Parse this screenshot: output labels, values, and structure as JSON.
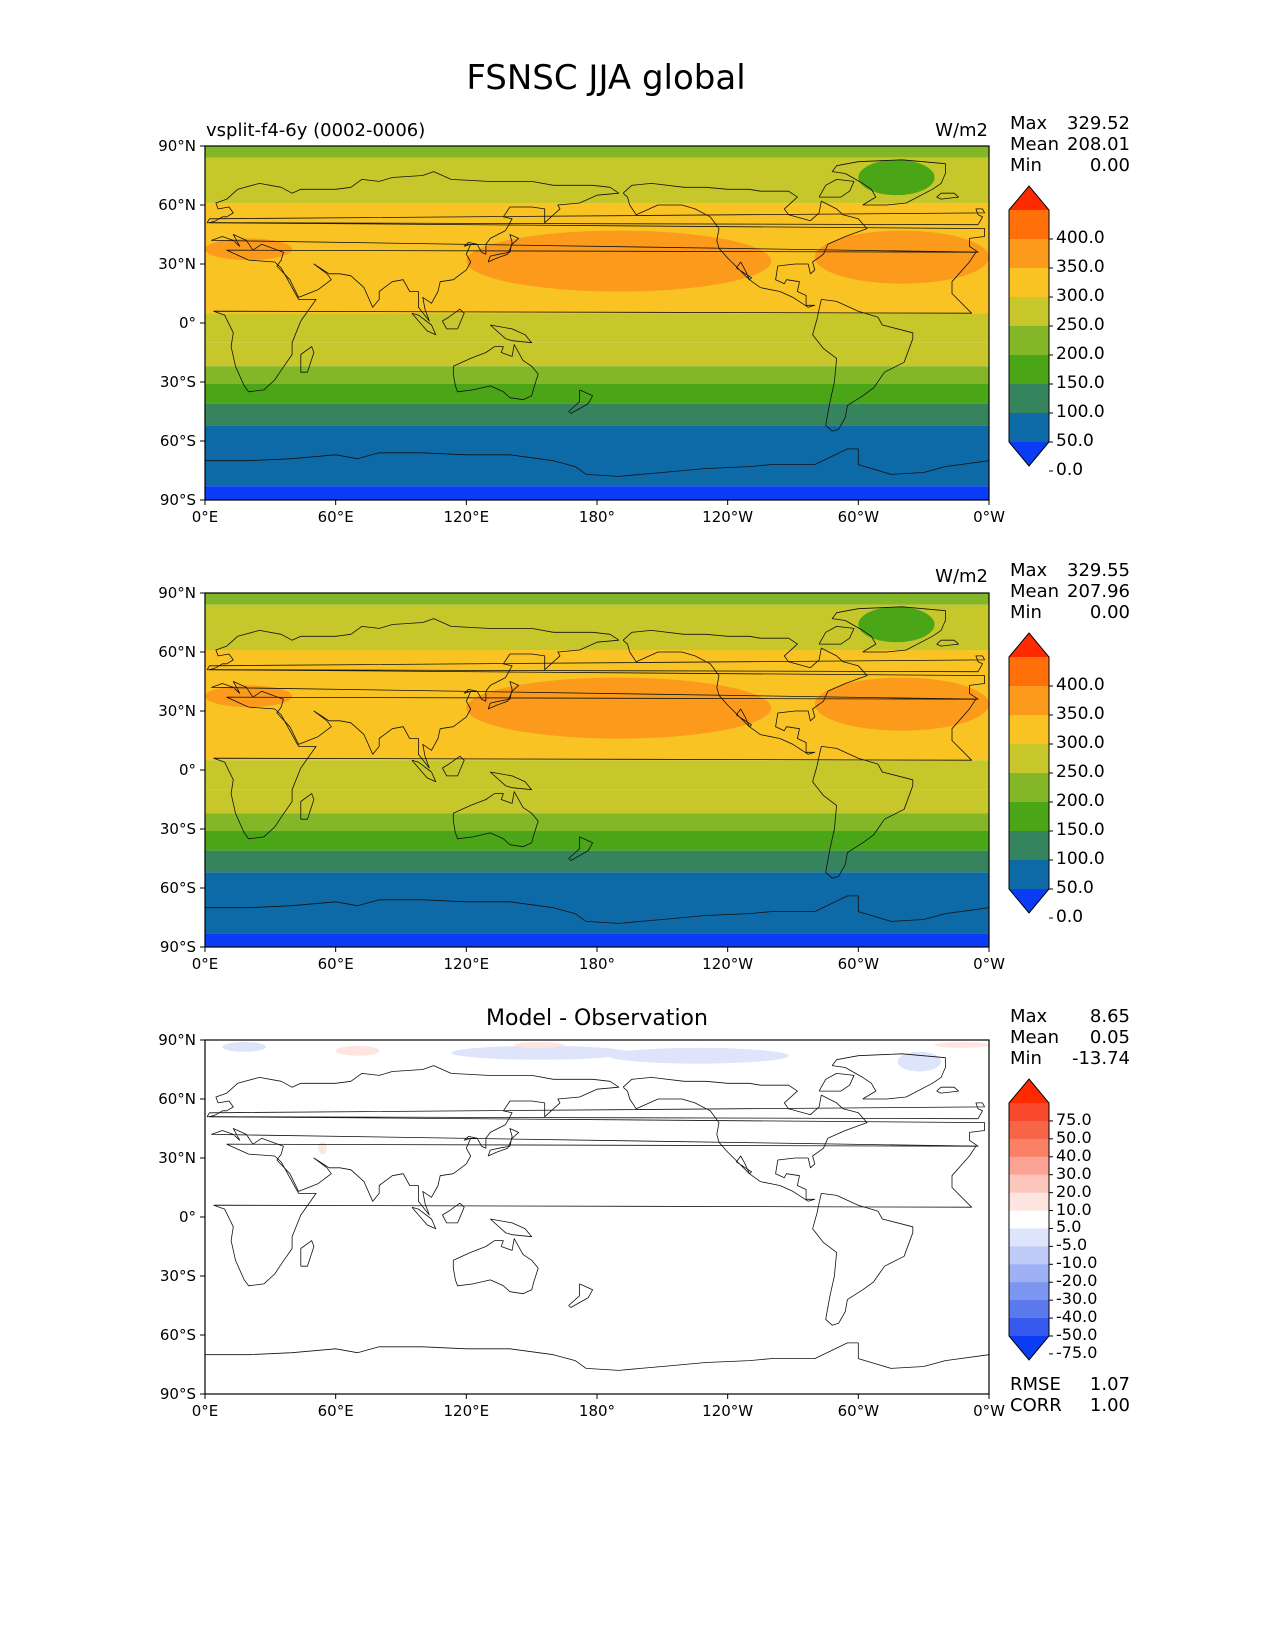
{
  "page": {
    "title": "FSNSC JJA global"
  },
  "chart_data": [
    {
      "type": "heatmap",
      "panel": "test",
      "left_label": "vsplit-f4-6y (0002-0006)",
      "units": "W/m2",
      "stats": {
        "max_label": "Max",
        "max": "329.52",
        "mean_label": "Mean",
        "mean": "208.01",
        "min_label": "Min",
        "min": "0.00"
      },
      "ylabels": [
        "90°N",
        "60°N",
        "30°N",
        "0°",
        "30°S",
        "60°S",
        "90°S"
      ],
      "xlabels": [
        "0°E",
        "60°E",
        "120°E",
        "180°",
        "120°W",
        "60°W",
        "0°W"
      ],
      "colorbar": {
        "levels": [
          "400.0",
          "350.0",
          "300.0",
          "250.0",
          "200.0",
          "150.0",
          "100.0",
          "50.0",
          "0.0"
        ],
        "colors": [
          "#ff2a00",
          "#ff6f0a",
          "#fc9a1b",
          "#f9c423",
          "#c7c72b",
          "#83b727",
          "#4ba617",
          "#36845e",
          "#0e6aa6",
          "#0b3cf5"
        ]
      },
      "zonal_bands": [
        {
          "lat": [
            84,
            90
          ],
          "value": 170
        },
        {
          "lat": [
            74,
            84
          ],
          "value": 200
        },
        {
          "lat": [
            61,
            74
          ],
          "value": 230
        },
        {
          "lat": [
            5,
            61
          ],
          "value": 270
        },
        {
          "lat": [
            -10,
            5
          ],
          "value": 240
        },
        {
          "lat": [
            -22,
            -10
          ],
          "value": 210
        },
        {
          "lat": [
            -31,
            -22
          ],
          "value": 170
        },
        {
          "lat": [
            -41,
            -31
          ],
          "value": 140
        },
        {
          "lat": [
            -52,
            -41
          ],
          "value": 90
        },
        {
          "lat": [
            -83,
            -52
          ],
          "value": 40
        },
        {
          "lat": [
            -90,
            -83
          ],
          "value": -10
        }
      ],
      "regions": [
        {
          "name": "north-pacific-high",
          "lon": [
            120,
            260
          ],
          "lat": [
            16,
            47
          ],
          "value": 320
        },
        {
          "name": "north-atlantic-high",
          "lon": [
            280,
            360
          ],
          "lat": [
            20,
            47
          ],
          "value": 320
        },
        {
          "name": "mediterranean",
          "lon": [
            0,
            40
          ],
          "lat": [
            32,
            43
          ],
          "value": 320
        },
        {
          "name": "greenland",
          "lon": [
            300,
            335
          ],
          "lat": [
            65,
            83
          ],
          "value": 110
        }
      ]
    },
    {
      "type": "heatmap",
      "panel": "reference",
      "left_label": "",
      "units": "W/m2",
      "stats": {
        "max_label": "Max",
        "max": "329.55",
        "mean_label": "Mean",
        "mean": "207.96",
        "min_label": "Min",
        "min": "0.00"
      },
      "ylabels": [
        "90°N",
        "60°N",
        "30°N",
        "0°",
        "30°S",
        "60°S",
        "90°S"
      ],
      "xlabels": [
        "0°E",
        "60°E",
        "120°E",
        "180°",
        "120°W",
        "60°W",
        "0°W"
      ],
      "colorbar": {
        "levels": [
          "400.0",
          "350.0",
          "300.0",
          "250.0",
          "200.0",
          "150.0",
          "100.0",
          "50.0",
          "0.0"
        ],
        "colors": [
          "#ff2a00",
          "#ff6f0a",
          "#fc9a1b",
          "#f9c423",
          "#c7c72b",
          "#83b727",
          "#4ba617",
          "#36845e",
          "#0e6aa6",
          "#0b3cf5"
        ]
      },
      "zonal_bands": [
        {
          "lat": [
            84,
            90
          ],
          "value": 170
        },
        {
          "lat": [
            74,
            84
          ],
          "value": 200
        },
        {
          "lat": [
            61,
            74
          ],
          "value": 230
        },
        {
          "lat": [
            5,
            61
          ],
          "value": 270
        },
        {
          "lat": [
            -10,
            5
          ],
          "value": 240
        },
        {
          "lat": [
            -22,
            -10
          ],
          "value": 210
        },
        {
          "lat": [
            -31,
            -22
          ],
          "value": 170
        },
        {
          "lat": [
            -41,
            -31
          ],
          "value": 140
        },
        {
          "lat": [
            -52,
            -41
          ],
          "value": 90
        },
        {
          "lat": [
            -83,
            -52
          ],
          "value": 40
        },
        {
          "lat": [
            -90,
            -83
          ],
          "value": -10
        }
      ],
      "regions": [
        {
          "name": "north-pacific-high",
          "lon": [
            120,
            260
          ],
          "lat": [
            16,
            47
          ],
          "value": 320
        },
        {
          "name": "north-atlantic-high",
          "lon": [
            280,
            360
          ],
          "lat": [
            20,
            47
          ],
          "value": 320
        },
        {
          "name": "mediterranean",
          "lon": [
            0,
            40
          ],
          "lat": [
            32,
            43
          ],
          "value": 320
        },
        {
          "name": "greenland",
          "lon": [
            300,
            335
          ],
          "lat": [
            65,
            83
          ],
          "value": 110
        }
      ]
    },
    {
      "type": "heatmap",
      "panel": "difference",
      "title": "Model - Observation",
      "stats": {
        "max_label": "Max",
        "max": "8.65",
        "mean_label": "Mean",
        "mean": "0.05",
        "min_label": "Min",
        "min": "-13.74"
      },
      "extra_stats": {
        "rmse_label": "RMSE",
        "rmse": "1.07",
        "corr_label": "CORR",
        "corr": "1.00"
      },
      "ylabels": [
        "90°N",
        "60°N",
        "30°N",
        "0°",
        "30°S",
        "60°S",
        "90°S"
      ],
      "xlabels": [
        "0°E",
        "60°E",
        "120°E",
        "180°",
        "120°W",
        "60°W",
        "0°W"
      ],
      "colorbar": {
        "levels": [
          "75.0",
          "50.0",
          "40.0",
          "30.0",
          "20.0",
          "10.0",
          "5.0",
          "-5.0",
          "-10.0",
          "-20.0",
          "-30.0",
          "-40.0",
          "-50.0",
          "-75.0"
        ],
        "colors": [
          "#ff2a00",
          "#f7472c",
          "#f86448",
          "#fa8066",
          "#fba394",
          "#fdc6bc",
          "#fee5e0",
          "#ffffff",
          "#dde4fb",
          "#bfccf7",
          "#9eb1f4",
          "#7c95f0",
          "#5b79ec",
          "#3658ee",
          "#0b3cf5"
        ]
      },
      "patches": [
        {
          "lon": [
            8,
            28
          ],
          "lat": [
            84,
            89
          ],
          "value": -8
        },
        {
          "lon": [
            60,
            80
          ],
          "lat": [
            82,
            87
          ],
          "value": 7
        },
        {
          "lon": [
            113,
            195
          ],
          "lat": [
            80,
            87
          ],
          "value": -7
        },
        {
          "lon": [
            142,
            165
          ],
          "lat": [
            86,
            89
          ],
          "value": 5
        },
        {
          "lon": [
            185,
            268
          ],
          "lat": [
            78,
            86
          ],
          "value": -9
        },
        {
          "lon": [
            318,
            338
          ],
          "lat": [
            74,
            84
          ],
          "value": -7
        },
        {
          "lon": [
            335,
            360
          ],
          "lat": [
            86,
            89
          ],
          "value": 5
        },
        {
          "lon": [
            52,
            56
          ],
          "lat": [
            32,
            38
          ],
          "value": 6
        }
      ]
    }
  ]
}
